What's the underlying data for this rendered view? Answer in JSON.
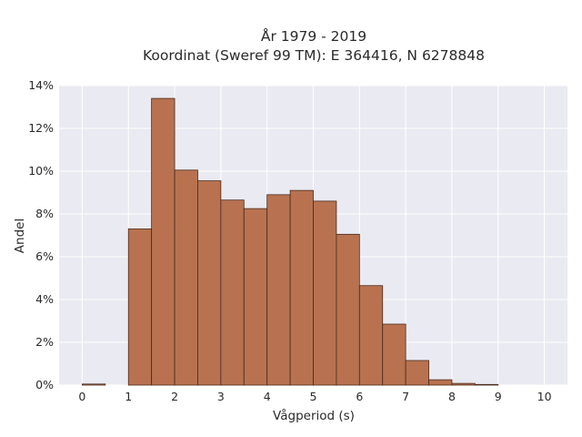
{
  "chart_data": {
    "type": "bar",
    "title_line1": "År 1979 - 2019",
    "title_line2": "Koordinat (Sweref 99 TM): E 364416, N 6278848",
    "xlabel": "Vågperiod (s)",
    "ylabel": "Andel",
    "xlim": [
      -0.5,
      10.5
    ],
    "ylim": [
      0,
      14
    ],
    "x_ticks": [
      "0",
      "1",
      "2",
      "3",
      "4",
      "5",
      "6",
      "7",
      "8",
      "9",
      "10"
    ],
    "y_ticks": [
      "0%",
      "2%",
      "4%",
      "6%",
      "8%",
      "10%",
      "12%",
      "14%"
    ],
    "bin_width": 0.5,
    "bins": [
      {
        "x0": 0.0,
        "value": 0.05
      },
      {
        "x0": 1.0,
        "value": 7.3
      },
      {
        "x0": 1.5,
        "value": 13.4
      },
      {
        "x0": 2.0,
        "value": 10.05
      },
      {
        "x0": 2.5,
        "value": 9.55
      },
      {
        "x0": 3.0,
        "value": 8.65
      },
      {
        "x0": 3.5,
        "value": 8.25
      },
      {
        "x0": 4.0,
        "value": 8.9
      },
      {
        "x0": 4.5,
        "value": 9.1
      },
      {
        "x0": 5.0,
        "value": 8.6
      },
      {
        "x0": 5.5,
        "value": 7.05
      },
      {
        "x0": 6.0,
        "value": 4.65
      },
      {
        "x0": 6.5,
        "value": 2.85
      },
      {
        "x0": 7.0,
        "value": 1.15
      },
      {
        "x0": 7.5,
        "value": 0.25
      },
      {
        "x0": 8.0,
        "value": 0.08
      },
      {
        "x0": 8.5,
        "value": 0.03
      }
    ],
    "grid": true,
    "colors": {
      "bar_fill": "#b87250",
      "bar_edge": "#4a2a1a",
      "plot_bg": "#eaeaf2",
      "grid": "#ffffff"
    }
  }
}
